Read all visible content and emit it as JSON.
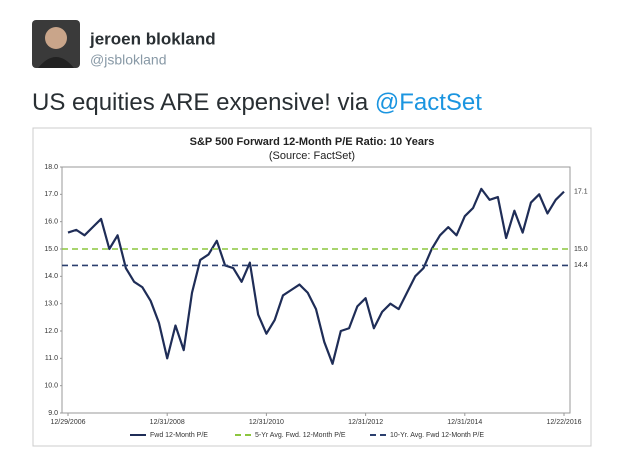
{
  "tweet": {
    "name": "jeroen blokland",
    "handle": "@jsblokland",
    "text": "US equities ARE expensive! via",
    "link": "@FactSet"
  },
  "chart_data": {
    "type": "line",
    "title": "S&P 500 Forward 12-Month P/E Ratio: 10 Years",
    "subtitle": "(Source: FactSet)",
    "categories": [
      "12/29/2006",
      null,
      null,
      null,
      null,
      null,
      null,
      null,
      null,
      null,
      null,
      null,
      "12/31/2008",
      null,
      null,
      null,
      null,
      null,
      null,
      null,
      null,
      null,
      null,
      null,
      "12/31/2010",
      null,
      null,
      null,
      null,
      null,
      null,
      null,
      null,
      null,
      null,
      null,
      "12/31/2012",
      null,
      null,
      null,
      null,
      null,
      null,
      null,
      null,
      null,
      null,
      null,
      "12/31/2014",
      null,
      null,
      null,
      null,
      null,
      null,
      null,
      null,
      null,
      null,
      null,
      "12/22/2016"
    ],
    "series": [
      {
        "name": "Fwd 12-Month P/E",
        "color": "#1f2d57",
        "values": [
          15.6,
          15.7,
          15.5,
          15.8,
          16.1,
          15.0,
          15.5,
          14.3,
          13.8,
          13.6,
          13.1,
          12.3,
          11.0,
          12.2,
          11.3,
          13.4,
          14.6,
          14.8,
          15.3,
          14.4,
          14.3,
          13.8,
          14.5,
          12.6,
          11.9,
          12.4,
          13.3,
          13.5,
          13.7,
          13.4,
          12.8,
          11.6,
          10.8,
          12.0,
          12.1,
          12.9,
          13.2,
          12.1,
          12.7,
          13.0,
          12.8,
          13.4,
          14.0,
          14.3,
          15.0,
          15.5,
          15.8,
          15.5,
          16.2,
          16.5,
          17.2,
          16.8,
          16.9,
          15.4,
          16.4,
          15.6,
          16.7,
          17.0,
          16.3,
          16.8,
          17.1
        ]
      },
      {
        "name": "5-Yr Avg. Fwd. 12-Month P/E",
        "color": "#8cc63f",
        "value": 15,
        "value_label": "15.0"
      },
      {
        "name": "10-Yr. Avg. Fwd 12-Month P/E",
        "color": "#2b3f6e",
        "value": 14.4
      }
    ],
    "ylim": [
      9,
      18
    ],
    "yticks": [
      {
        "value": 9,
        "label": "9.0"
      },
      {
        "value": 10,
        "label": "10.0"
      },
      {
        "value": 11,
        "label": "11.0"
      },
      {
        "value": 12,
        "label": "12.0"
      },
      {
        "value": 13,
        "label": "13.0"
      },
      {
        "value": 14,
        "label": "14.0"
      },
      {
        "value": 15,
        "label": "15.0"
      },
      {
        "value": 16,
        "label": "16.0"
      },
      {
        "value": 17,
        "label": "17.0"
      },
      {
        "value": 18,
        "label": "18.0"
      }
    ],
    "grid": false
  }
}
